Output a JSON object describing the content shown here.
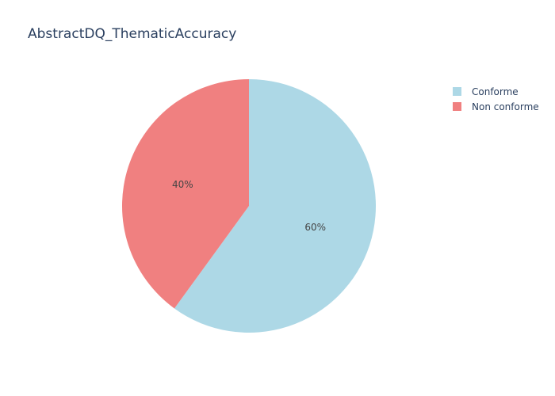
{
  "chart_data": {
    "type": "pie",
    "title": "AbstractDQ_ThematicAccuracy",
    "slices": [
      {
        "label": "Conforme",
        "value": 60,
        "display": "60%",
        "color": "#add8e6"
      },
      {
        "label": "Non conforme",
        "value": 40,
        "display": "40%",
        "color": "#f08080"
      }
    ],
    "legend_position": "top-right",
    "direction": "clockwise",
    "start_angle": "top"
  }
}
